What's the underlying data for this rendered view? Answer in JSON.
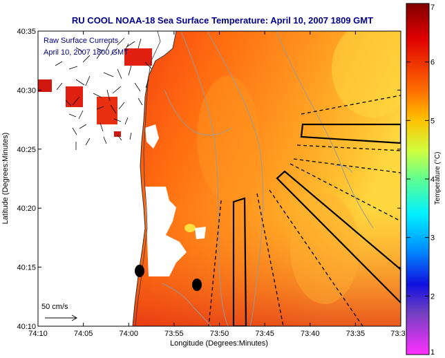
{
  "title": "RU COOL  NOAA-18  Sea Surface Temperature:  April 10, 2007 1809 GMT",
  "map": {
    "xlabel": "Longitude (Degrees:Minutes)",
    "ylabel": "Latitude (Degrees:Minutes)",
    "x_ticks": [
      "74:10",
      "74:05",
      "74:00",
      "73:55",
      "73:50",
      "73:45",
      "73:40",
      "73:35",
      "73:3"
    ],
    "y_ticks": [
      "40:35",
      "40:30",
      "40:25",
      "40:20",
      "40:15",
      "40:10"
    ],
    "annotation_line1": "Raw Surface Currents",
    "annotation_line2": "April 10, 2007 1800 GMT",
    "scale_label": "50 cm/s"
  },
  "colorbar": {
    "label": "Temperature (°C)",
    "ticks": [
      "7",
      "6",
      "5",
      "4",
      "3",
      "2",
      "1"
    ],
    "range": [
      1,
      7
    ]
  },
  "colors": {
    "title": "#00008b",
    "land": "#ffffff",
    "sst_warm": "#ff4500",
    "sst_mid": "#ff8c00",
    "sst_cool": "#ffd700",
    "bathymetry": "#999999"
  }
}
